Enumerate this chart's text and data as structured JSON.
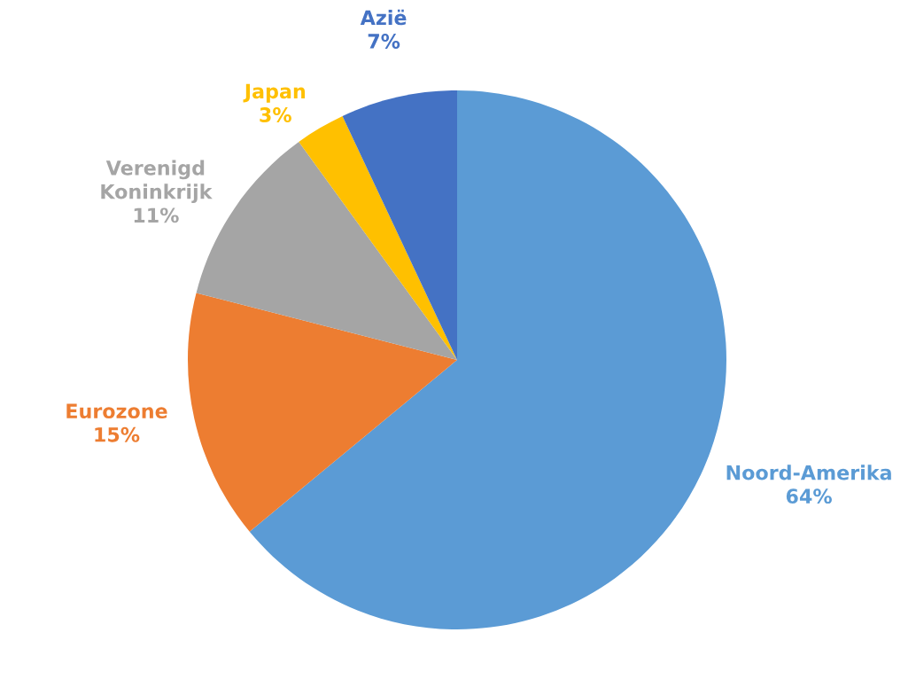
{
  "chart_data": {
    "type": "pie",
    "categories": [
      "Noord-Amerika",
      "Eurozone",
      "Verenigd Koninkrijk",
      "Japan",
      "Azië"
    ],
    "values": [
      64,
      15,
      11,
      3,
      7
    ],
    "value_labels": [
      "64%",
      "15%",
      "11%",
      "3%",
      "7%"
    ],
    "colors": [
      "#5b9bd5",
      "#ed7d31",
      "#a5a5a5",
      "#ffc000",
      "#4472c4"
    ],
    "legend": false
  }
}
